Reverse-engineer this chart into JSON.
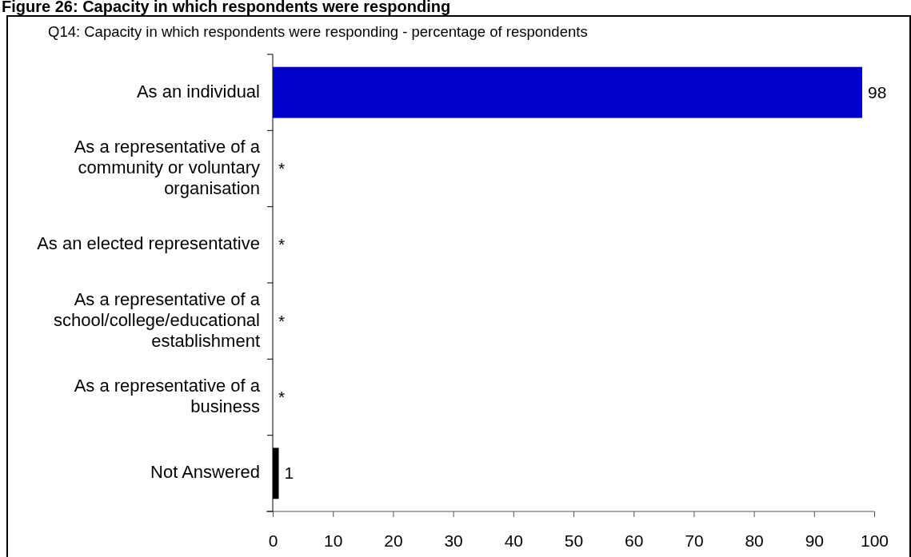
{
  "chart_data": {
    "type": "bar",
    "orientation": "horizontal",
    "title": "Figure 26: Capacity in which respondents were responding",
    "subtitle": "Q14: Capacity in which respondents were responding - percentage of respondents",
    "categories": [
      "As an individual",
      "As a representative of a community or voluntary organisation",
      "As an elected representative",
      "As a representative of a school/college/educational establishment",
      "As a representative of a business",
      "Not Answered"
    ],
    "values": [
      98,
      0,
      0,
      0,
      0,
      1
    ],
    "colors": [
      "#0000c8",
      "#0000c8",
      "#0000c8",
      "#0000c8",
      "#0000c8",
      "#000000"
    ],
    "value_labels": [
      "98",
      "*",
      "*",
      "*",
      "*",
      "1"
    ],
    "xlim": [
      0,
      100
    ],
    "xticks": [
      0,
      10,
      20,
      30,
      40,
      50,
      60,
      70,
      80,
      90,
      100
    ]
  }
}
